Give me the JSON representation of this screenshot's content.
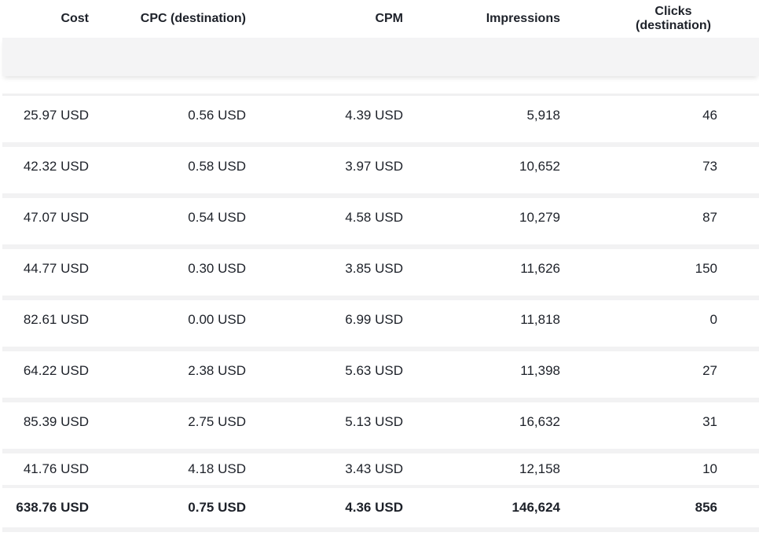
{
  "table": {
    "columns": [
      {
        "label": "Cost"
      },
      {
        "label": "CPC (destination)"
      },
      {
        "label": "CPM"
      },
      {
        "label": "Impressions"
      },
      {
        "label": "Clicks (destination)"
      }
    ],
    "rows": [
      {
        "cost": "25.97 USD",
        "cpc": "0.56 USD",
        "cpm": "4.39 USD",
        "impressions": "5,918",
        "clicks": "46"
      },
      {
        "cost": "42.32 USD",
        "cpc": "0.58 USD",
        "cpm": "3.97 USD",
        "impressions": "10,652",
        "clicks": "73"
      },
      {
        "cost": "47.07 USD",
        "cpc": "0.54 USD",
        "cpm": "4.58 USD",
        "impressions": "10,279",
        "clicks": "87"
      },
      {
        "cost": "44.77 USD",
        "cpc": "0.30 USD",
        "cpm": "3.85 USD",
        "impressions": "11,626",
        "clicks": "150"
      },
      {
        "cost": "82.61 USD",
        "cpc": "0.00 USD",
        "cpm": "6.99 USD",
        "impressions": "11,818",
        "clicks": "0"
      },
      {
        "cost": "64.22 USD",
        "cpc": "2.38 USD",
        "cpm": "5.63 USD",
        "impressions": "11,398",
        "clicks": "27"
      },
      {
        "cost": "85.39 USD",
        "cpc": "2.75 USD",
        "cpm": "5.13 USD",
        "impressions": "16,632",
        "clicks": "31"
      },
      {
        "cost": "41.76 USD",
        "cpc": "4.18 USD",
        "cpm": "3.43 USD",
        "impressions": "12,158",
        "clicks": "10"
      }
    ],
    "totals": {
      "cost": "638.76 USD",
      "cpc": "0.75 USD",
      "cpm": "4.36 USD",
      "impressions": "146,624",
      "clicks": "856"
    }
  },
  "colors": {
    "text": "#1d2129",
    "separator": "#f2f2f3",
    "summary_band": "#f4f4f5",
    "background": "#ffffff"
  }
}
